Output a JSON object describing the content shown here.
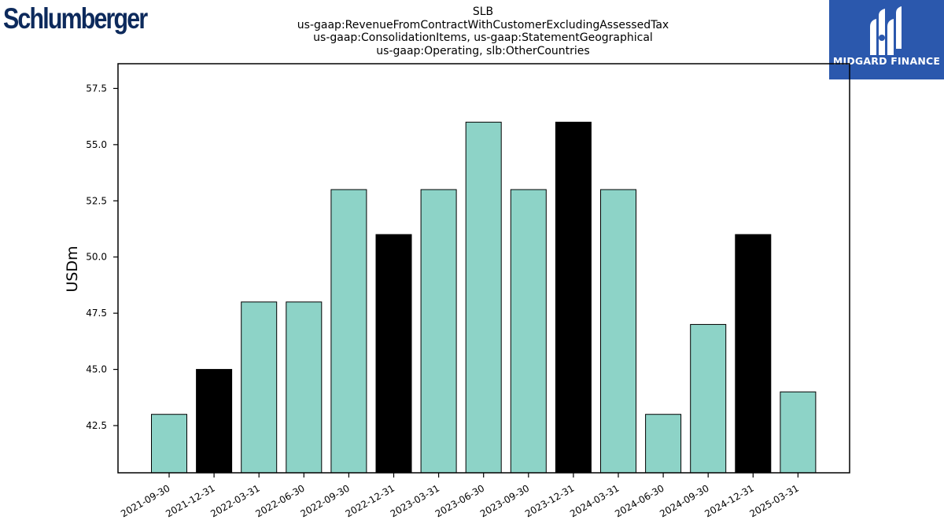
{
  "header": {
    "logo_text": "Schlumberger",
    "brand_text": "MIDGARD FINANCE"
  },
  "chart_data": {
    "type": "bar",
    "title_lines": [
      "SLB",
      "us-gaap:RevenueFromContractWithCustomerExcludingAssessedTax",
      "us-gaap:ConsolidationItems, us-gaap:StatementGeographical",
      "us-gaap:Operating, slb:OtherCountries"
    ],
    "ylabel": "USDm",
    "xlabel": "",
    "ylim": [
      40.4,
      58.6
    ],
    "yticks": [
      42.5,
      45.0,
      47.5,
      50.0,
      52.5,
      55.0,
      57.5
    ],
    "categories": [
      "2021-09-30",
      "2021-12-31",
      "2022-03-31",
      "2022-06-30",
      "2022-09-30",
      "2022-12-31",
      "2023-03-31",
      "2023-06-30",
      "2023-09-30",
      "2023-12-31",
      "2024-03-31",
      "2024-06-30",
      "2024-09-30",
      "2024-12-31",
      "2025-03-31"
    ],
    "values": [
      43,
      45,
      48,
      48,
      53,
      51,
      53,
      56,
      53,
      56,
      53,
      43,
      47,
      51,
      44
    ],
    "bar_colors": [
      "#8dd3c7",
      "#000000",
      "#8dd3c7",
      "#8dd3c7",
      "#8dd3c7",
      "#000000",
      "#8dd3c7",
      "#8dd3c7",
      "#8dd3c7",
      "#000000",
      "#8dd3c7",
      "#8dd3c7",
      "#8dd3c7",
      "#000000",
      "#8dd3c7"
    ],
    "grid": false,
    "legend": "none"
  }
}
